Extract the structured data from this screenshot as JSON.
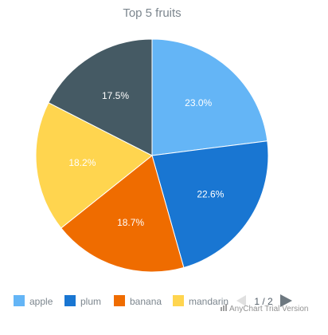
{
  "chart_data": {
    "type": "pie",
    "title": "Top 5 fruits",
    "slices": [
      {
        "label": "apple",
        "value": 23.0,
        "display": "23.0%",
        "color": "#64b5f6"
      },
      {
        "label": "plum",
        "value": 22.6,
        "display": "22.6%",
        "color": "#1976d2"
      },
      {
        "label": "banana",
        "value": 18.7,
        "display": "18.7%",
        "color": "#ef6c00"
      },
      {
        "label": "mandarin",
        "value": 18.2,
        "display": "18.2%",
        "color": "#ffd54f"
      },
      {
        "label": "",
        "value": 17.5,
        "display": "17.5%",
        "color": "#455a64"
      }
    ],
    "legend": {
      "position": "bottom",
      "items": [
        "apple",
        "plum",
        "banana",
        "mandarin"
      ],
      "page": "1 / 2"
    },
    "credits": "AnyChart Trial Version"
  }
}
